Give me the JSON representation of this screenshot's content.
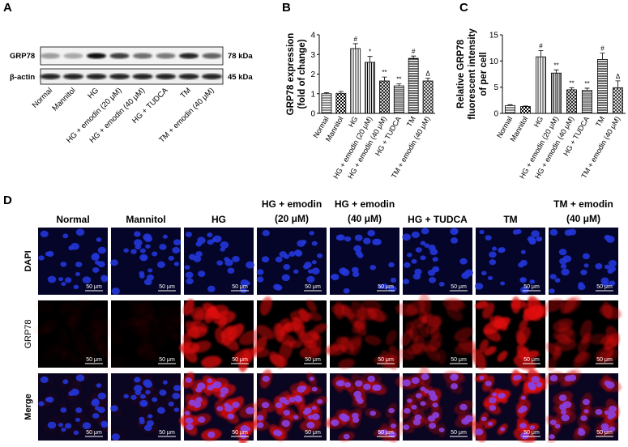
{
  "panel_letters": [
    "A",
    "B",
    "C",
    "D"
  ],
  "blot": {
    "rows": [
      "GRP78",
      "β-actin"
    ],
    "sizes": [
      "78 kDa",
      "45 kDa"
    ],
    "lanes": [
      "Normal",
      "Mannitol",
      "HG",
      "HG + emodin (20 μM)",
      "HG + emodin (40 μM)",
      "HG + TUDCA",
      "TM",
      "TM + emodin (40 μM)"
    ]
  },
  "chart_data": [
    {
      "type": "bar",
      "ylabel": [
        "GRP78 expression",
        "(fold of change)"
      ],
      "categories": [
        "Normal",
        "Mannitol",
        "HG",
        "HG + emodin (20 μM)",
        "HG + emodin (40 μM)",
        "HG + TUDCA",
        "TM",
        "TM + emodin (40 μM)"
      ],
      "values": [
        1.0,
        1.02,
        3.3,
        2.6,
        1.65,
        1.4,
        2.8,
        1.65
      ],
      "errors": [
        0.05,
        0.1,
        0.25,
        0.3,
        0.2,
        0.1,
        0.12,
        0.15
      ],
      "annotations": [
        null,
        null,
        "#",
        "*",
        "**",
        "**",
        "#",
        "Δ"
      ],
      "ylim": [
        0,
        4
      ],
      "yticks": [
        0,
        1,
        2,
        3,
        4
      ]
    },
    {
      "type": "bar",
      "ylabel": [
        "Relative GRP78",
        "fluorescent intensity",
        "of per cell"
      ],
      "categories": [
        "Normal",
        "Mannitol",
        "HG",
        "HG + emodin (20 μM)",
        "HG + emodin (40 μM)",
        "HG + TUDCA",
        "TM",
        "TM + emodin (40 μM)"
      ],
      "values": [
        1.5,
        1.3,
        10.8,
        7.7,
        4.5,
        4.4,
        10.3,
        4.9
      ],
      "errors": [
        0.15,
        0.1,
        1.2,
        0.6,
        0.4,
        0.4,
        1.2,
        1.3
      ],
      "annotations": [
        null,
        null,
        "#",
        "**",
        "**",
        "**",
        "#",
        "Δ"
      ],
      "ylim": [
        0,
        15
      ],
      "yticks": [
        0,
        5,
        10,
        15
      ]
    }
  ],
  "micrographs": {
    "columns": [
      [
        "Normal"
      ],
      [
        "Mannitol"
      ],
      [
        "HG"
      ],
      [
        "HG + emodin",
        "(20 μM)"
      ],
      [
        "HG + emodin",
        "(40 μM)"
      ],
      [
        "HG + TUDCA"
      ],
      [
        "TM"
      ],
      [
        "TM + emodin",
        "(40 μM)"
      ]
    ],
    "rows": [
      "DAPI",
      "GRP78",
      "Merge"
    ],
    "scale_bar": "50 μm"
  }
}
